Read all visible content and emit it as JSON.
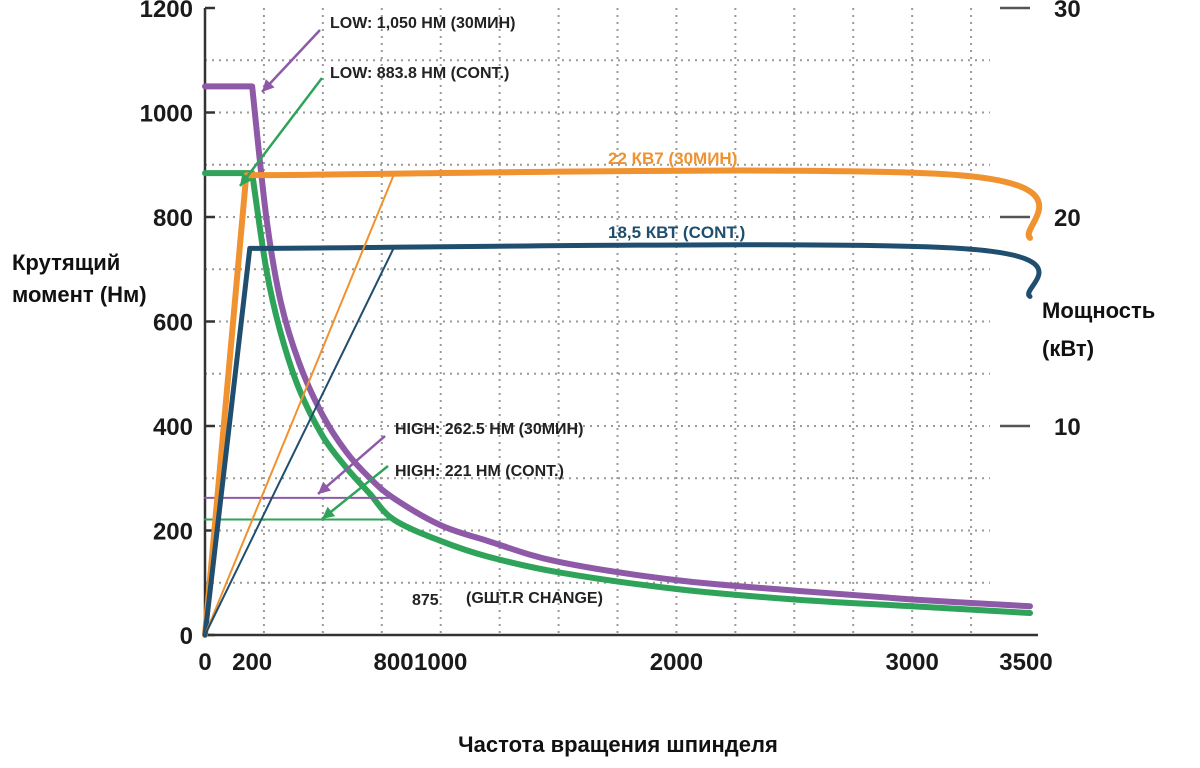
{
  "chart_data": {
    "type": "line",
    "xlabel": "Частота вращения шпинделя",
    "ylabel_left": [
      "Крутящий",
      "момент (Нм)"
    ],
    "ylabel_right": [
      "Мощность",
      "(кВт)"
    ],
    "xlim": [
      0,
      3500
    ],
    "ylim_left": [
      0,
      1200
    ],
    "ylim_right": [
      0,
      30
    ],
    "x_ticks": [
      0,
      200,
      800,
      1000,
      2000,
      3000,
      3500
    ],
    "y_ticks_left": [
      0,
      200,
      400,
      600,
      800,
      1000,
      1200
    ],
    "y_ticks_right": [
      10,
      20,
      30
    ],
    "grid": true,
    "colors": {
      "low_30min": "#8e5aa8",
      "low_cont": "#2fa35a",
      "power_30min": "#f0922f",
      "power_cont": "#1f4e6e",
      "grid": "#9a9a9a"
    },
    "series": [
      {
        "name": "LOW: 1,050 НМ (30МИН)",
        "axis": "left",
        "color": "#8e5aa8",
        "width": 6,
        "points": [
          [
            0,
            1050
          ],
          [
            200,
            1050
          ],
          [
            260,
            800
          ],
          [
            320,
            640
          ],
          [
            400,
            520
          ],
          [
            500,
            420
          ],
          [
            600,
            350
          ],
          [
            700,
            300
          ],
          [
            800,
            262
          ],
          [
            1000,
            210
          ],
          [
            1200,
            180
          ],
          [
            1500,
            140
          ],
          [
            2000,
            105
          ],
          [
            2500,
            85
          ],
          [
            3000,
            68
          ],
          [
            3500,
            55
          ]
        ]
      },
      {
        "name": "LOW: 883.8 НМ (CONT.)",
        "axis": "left",
        "color": "#2fa35a",
        "width": 6,
        "points": [
          [
            0,
            884
          ],
          [
            200,
            884
          ],
          [
            260,
            700
          ],
          [
            320,
            580
          ],
          [
            400,
            470
          ],
          [
            500,
            380
          ],
          [
            600,
            320
          ],
          [
            700,
            270
          ],
          [
            800,
            221
          ],
          [
            1000,
            180
          ],
          [
            1200,
            150
          ],
          [
            1500,
            120
          ],
          [
            2000,
            88
          ],
          [
            2500,
            68
          ],
          [
            3000,
            55
          ],
          [
            3500,
            42
          ]
        ]
      },
      {
        "name": "HIGH: 262.5 НМ (30МИН)",
        "axis": "left",
        "color": "#8e5aa8",
        "width": 2,
        "points": [
          [
            0,
            262.5
          ],
          [
            800,
            262.5
          ]
        ]
      },
      {
        "name": "HIGH: 221 НМ (CONT.)",
        "axis": "left",
        "color": "#2fa35a",
        "width": 2,
        "points": [
          [
            0,
            221
          ],
          [
            800,
            221
          ]
        ]
      },
      {
        "name": "22 КВ7 (30МИН)",
        "axis": "right",
        "color": "#f0922f",
        "width": 6,
        "points": [
          [
            0,
            0
          ],
          [
            175,
            22
          ],
          [
            3200,
            22
          ],
          [
            3500,
            19
          ]
        ]
      },
      {
        "name": "18,5 КВТ (CONT.)",
        "axis": "right",
        "color": "#1f4e6e",
        "width": 5,
        "points": [
          [
            0,
            0
          ],
          [
            190,
            18.5
          ],
          [
            3200,
            18.5
          ],
          [
            3500,
            16.2
          ]
        ]
      },
      {
        "name": "",
        "axis": "right",
        "color": "#f0922f",
        "width": 2,
        "points": [
          [
            0,
            0
          ],
          [
            800,
            22
          ]
        ]
      },
      {
        "name": "",
        "axis": "right",
        "color": "#1f4e6e",
        "width": 2,
        "points": [
          [
            0,
            0
          ],
          [
            800,
            18.5
          ]
        ]
      }
    ],
    "annotations": [
      {
        "text": "LOW: 1,050 НМ (30МИН)",
        "color": "#222222"
      },
      {
        "text": "LOW: 883.8 НМ (CONT.)",
        "color": "#222222"
      },
      {
        "text": "22 КВ7 (30МИН)",
        "color": "#f0922f"
      },
      {
        "text": "18,5 КВТ (CONT.)",
        "color": "#1f4e6e"
      },
      {
        "text": "HIGH: 262.5 НМ (30МИН)",
        "color": "#222222"
      },
      {
        "text": "HIGH: 221 НМ (CONT.)",
        "color": "#222222"
      },
      {
        "text": "875",
        "color": "#222222"
      },
      {
        "text": "(GШТ.R CHANGE)",
        "color": "#222222"
      }
    ]
  }
}
